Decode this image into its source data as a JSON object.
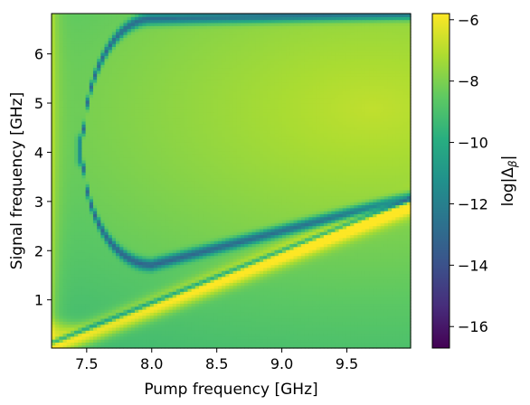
{
  "chart_data": {
    "type": "heatmap",
    "xlabel": "Pump frequency [GHz]",
    "ylabel": "Signal frequency [GHz]",
    "colorbar_label": "log|Δ",
    "colorbar_label_subscript": "β",
    "colorbar_label_close": "|",
    "colormap": "viridis",
    "xlim": [
      7.23,
      9.99
    ],
    "ylim": [
      0.02,
      6.82
    ],
    "clim": [
      -16.7,
      -5.8
    ],
    "x_ticks": [
      7.5,
      8.0,
      8.5,
      9.0,
      9.5
    ],
    "x_tick_labels": [
      "7.5",
      "8.0",
      "8.5",
      "9.0",
      "9.5"
    ],
    "y_ticks": [
      1,
      2,
      3,
      4,
      5,
      6
    ],
    "y_tick_labels": [
      "1",
      "2",
      "3",
      "4",
      "5",
      "6"
    ],
    "c_ticks": [
      -16,
      -14,
      -12,
      -10,
      -8,
      -6
    ],
    "c_tick_labels": [
      "−16",
      "−14",
      "−12",
      "−10",
      "−8",
      "−6"
    ],
    "grid": false,
    "features": {
      "resonance_loop": {
        "left_turning_point_x": 7.47,
        "center_y": 4.05,
        "lower_branch_min_y": 1.72,
        "lower_branch_min_x": 8.0,
        "upper_branch_y": 6.72,
        "lower_branch_end": [
          9.99,
          3.1
        ],
        "min_value": -16.7
      },
      "bright_diagonal_band": {
        "start": [
          7.3,
          0.1
        ],
        "end": [
          9.99,
          2.95
        ],
        "value": -6.0
      },
      "background_range": [
        -9.5,
        -7.0
      ]
    }
  }
}
